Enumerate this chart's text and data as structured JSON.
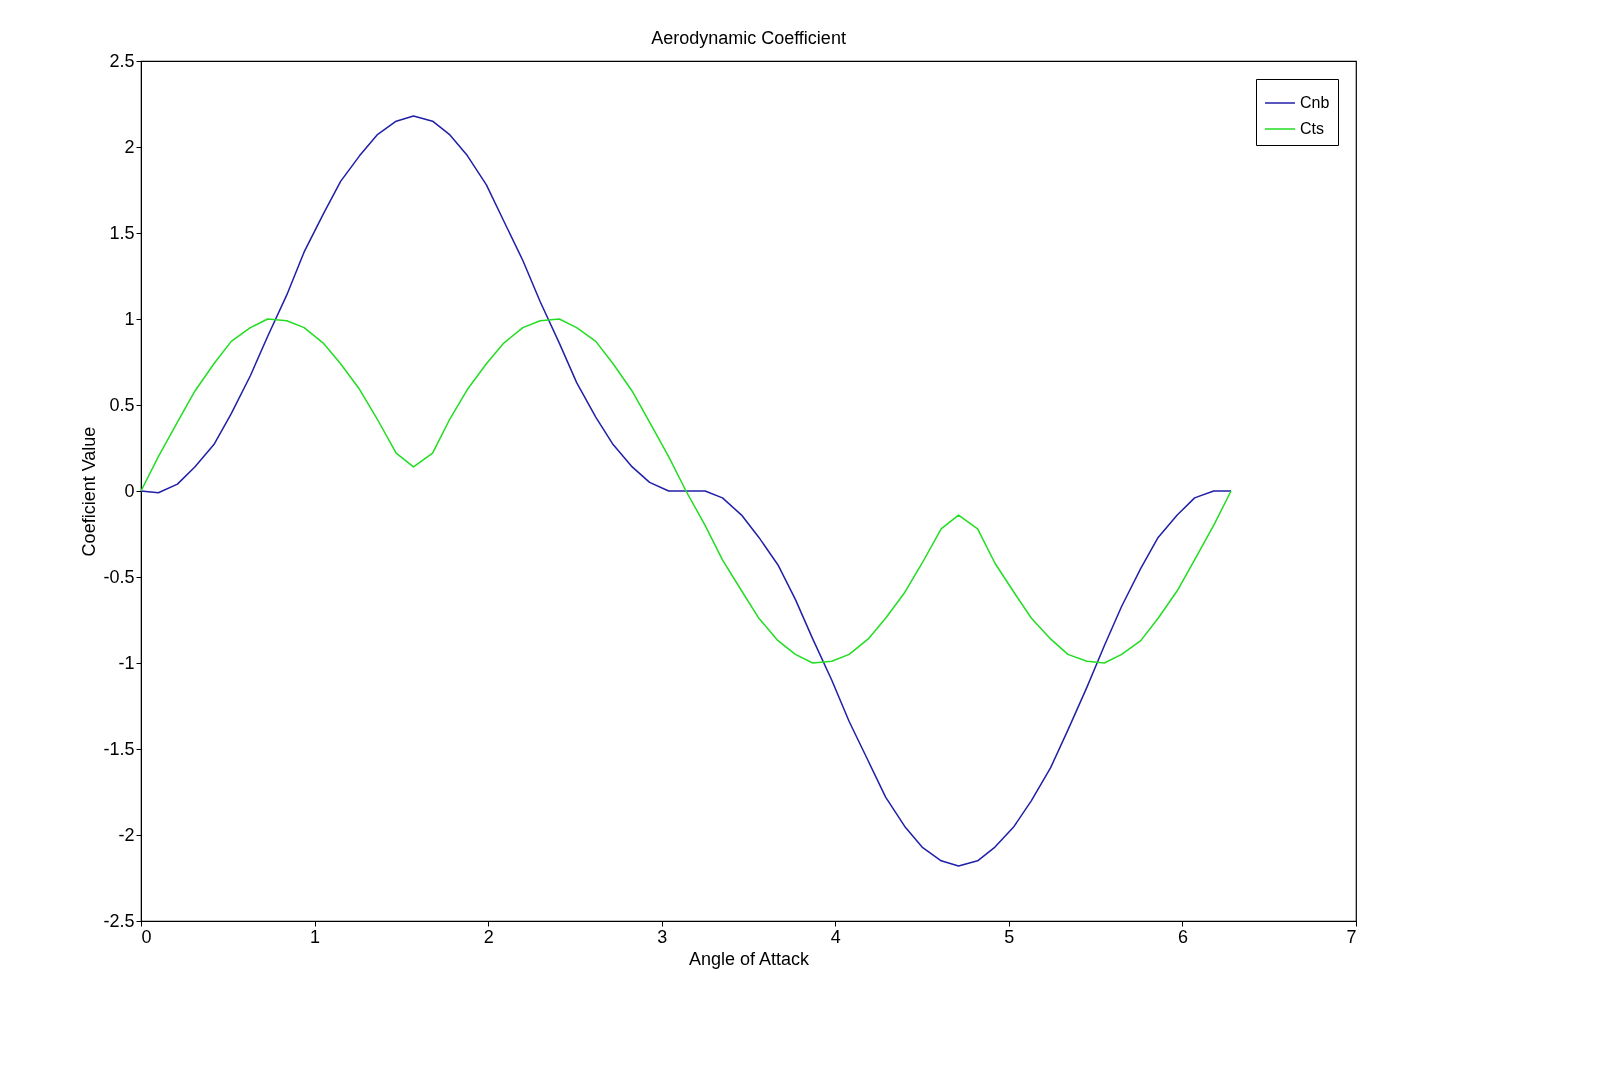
{
  "chart_data": {
    "type": "line",
    "title": "Aerodynamic Coefficient",
    "xlabel": "Angle of Attack",
    "ylabel": "Coeficient Value",
    "x": [
      0,
      0.1,
      0.21,
      0.31,
      0.42,
      0.52,
      0.63,
      0.73,
      0.84,
      0.94,
      1.05,
      1.15,
      1.26,
      1.36,
      1.47,
      1.57,
      1.68,
      1.78,
      1.88,
      1.99,
      2.09,
      2.2,
      2.3,
      2.41,
      2.51,
      2.62,
      2.72,
      2.83,
      2.93,
      3.04,
      3.14,
      3.25,
      3.35,
      3.46,
      3.56,
      3.67,
      3.77,
      3.87,
      3.98,
      4.08,
      4.19,
      4.29,
      4.4,
      4.5,
      4.61,
      4.71,
      4.82,
      4.92,
      5.03,
      5.13,
      5.24,
      5.34,
      5.45,
      5.55,
      5.65,
      5.76,
      5.86,
      5.97,
      6.07,
      6.18,
      6.28
    ],
    "series": [
      {
        "name": "Cnb",
        "color": "#1f1fa8",
        "values": [
          0,
          -0.01,
          0.04,
          0.14,
          0.27,
          0.45,
          0.67,
          0.9,
          1.14,
          1.39,
          1.61,
          1.8,
          1.95,
          2.07,
          2.15,
          2.18,
          2.15,
          2.07,
          1.95,
          1.78,
          1.57,
          1.34,
          1.1,
          0.86,
          0.63,
          0.43,
          0.27,
          0.14,
          0.05,
          0,
          0,
          0,
          -0.04,
          -0.14,
          -0.27,
          -0.43,
          -0.63,
          -0.86,
          -1.1,
          -1.34,
          -1.57,
          -1.78,
          -1.95,
          -2.07,
          -2.15,
          -2.18,
          -2.15,
          -2.07,
          -1.95,
          -1.8,
          -1.61,
          -1.39,
          -1.14,
          -0.9,
          -0.67,
          -0.45,
          -0.27,
          -0.14,
          -0.04,
          0,
          0
        ]
      },
      {
        "name": "Cts",
        "color": "#22dd22",
        "values": [
          0,
          0.2,
          0.4,
          0.58,
          0.74,
          0.87,
          0.95,
          1.0,
          0.99,
          0.95,
          0.86,
          0.74,
          0.59,
          0.42,
          0.22,
          0.14,
          0.22,
          0.42,
          0.59,
          0.74,
          0.86,
          0.95,
          0.99,
          1.0,
          0.95,
          0.87,
          0.74,
          0.58,
          0.4,
          0.2,
          0,
          -0.2,
          -0.4,
          -0.58,
          -0.74,
          -0.87,
          -0.95,
          -1.0,
          -0.99,
          -0.95,
          -0.86,
          -0.74,
          -0.59,
          -0.42,
          -0.22,
          -0.14,
          -0.22,
          -0.42,
          -0.59,
          -0.74,
          -0.86,
          -0.95,
          -0.99,
          -1.0,
          -0.95,
          -0.87,
          -0.74,
          -0.58,
          -0.4,
          -0.2,
          0
        ]
      }
    ],
    "xlim": [
      0,
      7
    ],
    "xticks": [
      0,
      1,
      2,
      3,
      4,
      5,
      6,
      7
    ],
    "ylim": [
      -2.5,
      2.5
    ],
    "yticks": [
      -2.5,
      -2,
      -1.5,
      -1,
      -0.5,
      0,
      0.5,
      1,
      1.5,
      2,
      2.5
    ],
    "grid": false,
    "legend": "top right",
    "marker": "none",
    "line_style": "solid"
  }
}
